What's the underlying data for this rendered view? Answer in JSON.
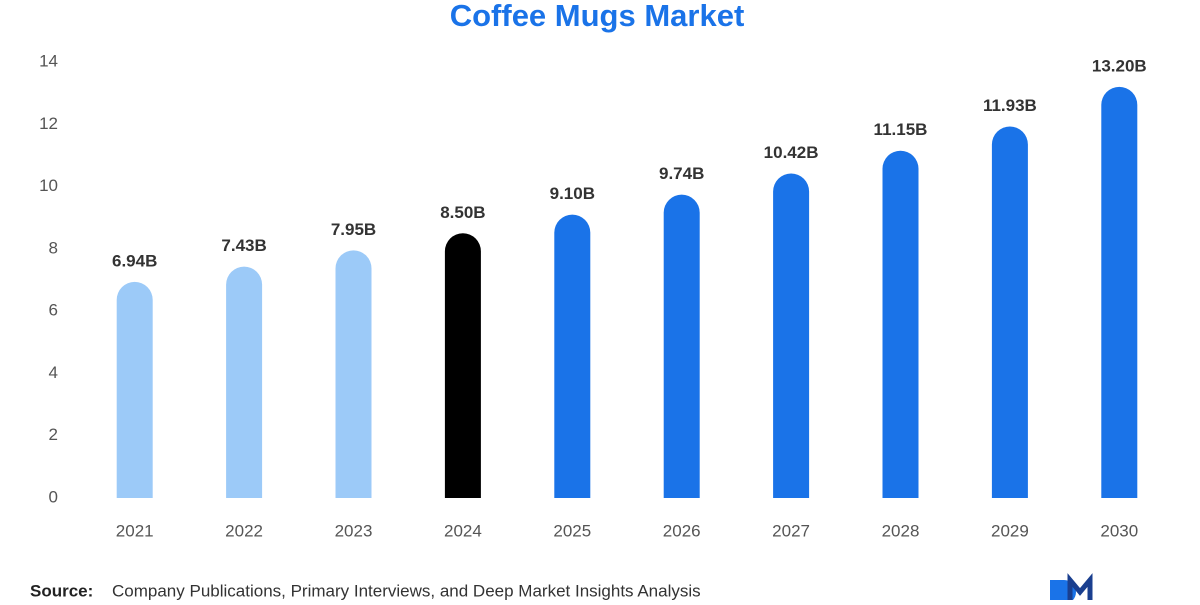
{
  "chart_data": {
    "type": "bar",
    "title": "Coffee Mugs Market",
    "categories": [
      "2021",
      "2022",
      "2023",
      "2024",
      "2025",
      "2026",
      "2027",
      "2028",
      "2029",
      "2030"
    ],
    "values": [
      6.94,
      7.43,
      7.95,
      8.5,
      9.1,
      9.74,
      10.42,
      11.15,
      11.93,
      13.2
    ],
    "value_labels": [
      "6.94B",
      "7.43B",
      "7.95B",
      "8.50B",
      "9.10B",
      "9.74B",
      "10.42B",
      "11.15B",
      "11.93B",
      "13.20B"
    ],
    "colors": [
      "#9ccaf8",
      "#9ccaf8",
      "#9ccaf8",
      "#000000",
      "#1a73e8",
      "#1a73e8",
      "#1a73e8",
      "#1a73e8",
      "#1a73e8",
      "#1a73e8"
    ],
    "ylim": [
      0,
      14
    ],
    "yticks": [
      0,
      2,
      4,
      6,
      8,
      10,
      12,
      14
    ],
    "grid": false,
    "source_label": "Source:",
    "source": "Company Publications, Primary Interviews, and Deep Market Insights Analysis"
  }
}
